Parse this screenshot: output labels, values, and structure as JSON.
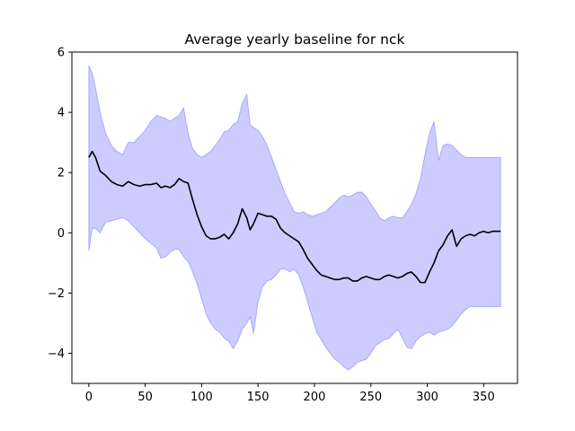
{
  "chart_data": {
    "type": "line",
    "title": "Average yearly baseline for nck",
    "xlabel": "",
    "ylabel": "",
    "xlim": [
      -15,
      380
    ],
    "ylim": [
      -5,
      6
    ],
    "xticks": [
      0,
      50,
      100,
      150,
      200,
      250,
      300,
      350
    ],
    "yticks": [
      -4,
      -2,
      0,
      2,
      4,
      6
    ],
    "grid": false,
    "colors": {
      "line": "#000000",
      "band": "#0000ff",
      "band_alpha": 0.2,
      "axes": "#000000",
      "background": "#ffffff"
    },
    "series": [
      {
        "type": "line",
        "x": [
          0,
          3,
          6,
          10,
          15,
          20,
          25,
          30,
          35,
          40,
          45,
          50,
          55,
          60,
          64,
          68,
          72,
          76,
          80,
          84,
          88,
          92,
          96,
          100,
          104,
          108,
          112,
          116,
          120,
          124,
          128,
          132,
          136,
          140,
          143,
          146,
          150,
          154,
          158,
          162,
          166,
          170,
          174,
          178,
          182,
          186,
          190,
          194,
          198,
          202,
          206,
          210,
          214,
          218,
          222,
          226,
          230,
          234,
          238,
          242,
          246,
          250,
          254,
          258,
          262,
          266,
          270,
          274,
          278,
          282,
          286,
          290,
          294,
          298,
          302,
          306,
          310,
          314,
          318,
          322,
          326,
          330,
          334,
          338,
          342,
          346,
          350,
          354,
          358,
          362,
          365
        ],
        "y": [
          2.5,
          2.7,
          2.5,
          2.05,
          1.9,
          1.7,
          1.6,
          1.55,
          1.7,
          1.6,
          1.55,
          1.6,
          1.6,
          1.65,
          1.5,
          1.55,
          1.5,
          1.6,
          1.8,
          1.7,
          1.65,
          1.1,
          0.6,
          0.2,
          -0.1,
          -0.2,
          -0.2,
          -0.15,
          -0.05,
          -0.2,
          0.0,
          0.3,
          0.8,
          0.5,
          0.1,
          0.3,
          0.65,
          0.6,
          0.55,
          0.55,
          0.45,
          0.15,
          0.0,
          -0.1,
          -0.2,
          -0.3,
          -0.55,
          -0.85,
          -1.05,
          -1.25,
          -1.4,
          -1.45,
          -1.5,
          -1.55,
          -1.55,
          -1.5,
          -1.5,
          -1.6,
          -1.6,
          -1.5,
          -1.45,
          -1.5,
          -1.55,
          -1.55,
          -1.45,
          -1.4,
          -1.45,
          -1.5,
          -1.45,
          -1.35,
          -1.3,
          -1.45,
          -1.65,
          -1.65,
          -1.3,
          -1.0,
          -0.6,
          -0.4,
          -0.1,
          0.1,
          -0.45,
          -0.2,
          -0.1,
          -0.05,
          -0.1,
          0.0,
          0.05,
          0.0,
          0.05,
          0.05,
          0.05
        ]
      },
      {
        "type": "band",
        "x": [
          0,
          3,
          6,
          10,
          15,
          20,
          25,
          30,
          35,
          40,
          45,
          50,
          55,
          60,
          64,
          68,
          72,
          76,
          80,
          84,
          88,
          92,
          96,
          100,
          104,
          108,
          112,
          116,
          120,
          124,
          128,
          132,
          136,
          140,
          143,
          146,
          150,
          154,
          158,
          162,
          166,
          170,
          174,
          178,
          182,
          186,
          190,
          194,
          198,
          202,
          206,
          210,
          214,
          218,
          222,
          226,
          230,
          234,
          238,
          242,
          246,
          250,
          254,
          258,
          262,
          266,
          270,
          274,
          278,
          282,
          286,
          290,
          294,
          298,
          302,
          306,
          310,
          314,
          318,
          322,
          326,
          330,
          334,
          338,
          342,
          346,
          350,
          354,
          358,
          362,
          365
        ],
        "upper": [
          5.55,
          5.3,
          4.8,
          4.0,
          3.3,
          2.9,
          2.7,
          2.6,
          3.0,
          3.0,
          3.2,
          3.4,
          3.7,
          3.9,
          3.85,
          3.8,
          3.7,
          3.8,
          3.9,
          4.15,
          3.3,
          2.8,
          2.6,
          2.5,
          2.6,
          2.7,
          2.9,
          3.1,
          3.35,
          3.4,
          3.6,
          3.7,
          4.3,
          4.6,
          3.6,
          3.5,
          3.4,
          3.2,
          2.9,
          2.5,
          2.1,
          1.7,
          1.3,
          1.0,
          0.7,
          0.65,
          0.7,
          0.6,
          0.55,
          0.6,
          0.65,
          0.7,
          0.85,
          1.0,
          1.15,
          1.25,
          1.2,
          1.25,
          1.35,
          1.35,
          1.2,
          0.95,
          0.75,
          0.5,
          0.4,
          0.5,
          0.55,
          0.5,
          0.5,
          0.7,
          0.95,
          1.3,
          1.8,
          2.6,
          3.3,
          3.7,
          2.4,
          2.9,
          2.95,
          2.9,
          2.75,
          2.6,
          2.5,
          2.5,
          2.5,
          2.5,
          2.5,
          2.5,
          2.5,
          2.5,
          2.5
        ],
        "lower": [
          -0.6,
          0.15,
          0.15,
          0.0,
          0.35,
          0.4,
          0.45,
          0.5,
          0.4,
          0.2,
          0.0,
          -0.2,
          -0.35,
          -0.5,
          -0.85,
          -0.8,
          -0.65,
          -0.55,
          -0.55,
          -0.8,
          -0.95,
          -1.3,
          -1.7,
          -2.2,
          -2.7,
          -3.0,
          -3.2,
          -3.3,
          -3.5,
          -3.6,
          -3.85,
          -3.6,
          -3.2,
          -3.0,
          -2.8,
          -3.35,
          -2.3,
          -1.8,
          -1.6,
          -1.55,
          -1.4,
          -1.2,
          -1.2,
          -1.3,
          -1.2,
          -1.4,
          -1.8,
          -2.3,
          -2.8,
          -3.3,
          -3.55,
          -3.8,
          -4.0,
          -4.2,
          -4.3,
          -4.45,
          -4.55,
          -4.45,
          -4.3,
          -4.25,
          -4.2,
          -4.0,
          -3.75,
          -3.65,
          -3.55,
          -3.5,
          -3.35,
          -3.2,
          -3.5,
          -3.8,
          -3.85,
          -3.6,
          -3.45,
          -3.35,
          -3.3,
          -3.4,
          -3.3,
          -3.25,
          -3.2,
          -3.1,
          -2.9,
          -2.7,
          -2.55,
          -2.45,
          -2.45,
          -2.45,
          -2.45,
          -2.45,
          -2.45,
          -2.45,
          -2.45
        ]
      }
    ]
  }
}
